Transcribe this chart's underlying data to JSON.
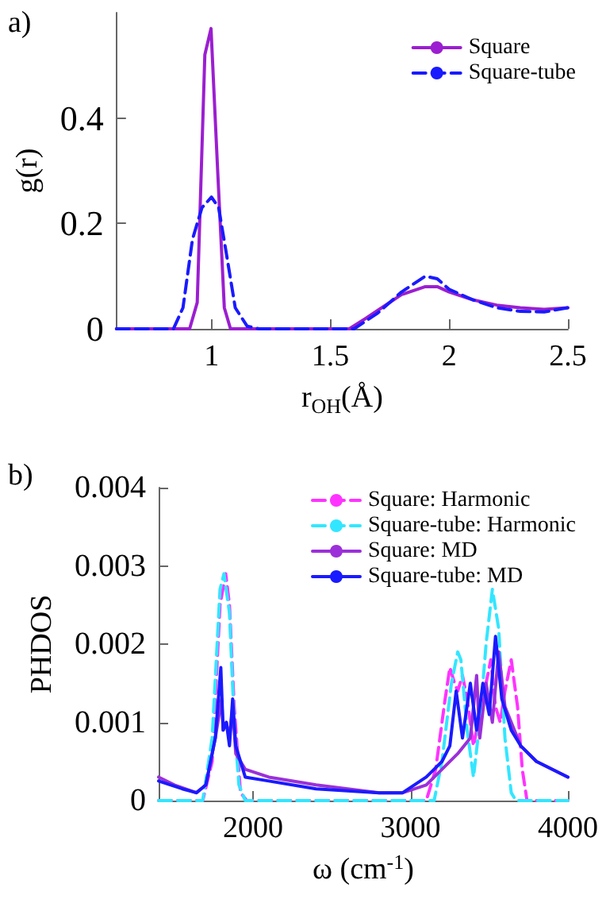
{
  "chart_data": [
    {
      "type": "line",
      "title": "a)",
      "xlabel": "r$_{OH}$(Å)",
      "ylabel": "g(r)",
      "xlim": [
        0.6,
        2.5
      ],
      "xticks": [
        1,
        1.5,
        2,
        2.5
      ],
      "ylim": [
        0,
        0.6
      ],
      "yticks": [
        0,
        0.2,
        0.4
      ],
      "grid": false,
      "legend": "top right",
      "series": [
        {
          "name": "Square",
          "color": "#9b1fd0",
          "line_style": "solid",
          "x": [
            0.6,
            0.908,
            0.94,
            0.972,
            0.998,
            1.026,
            1.054,
            1.08,
            1.58,
            1.65,
            1.7,
            1.8,
            1.9,
            1.95,
            2.0,
            2.1,
            2.2,
            2.3,
            2.4,
            2.5
          ],
          "values": [
            0,
            0,
            0.05,
            0.52,
            0.57,
            0.3,
            0.04,
            0,
            0,
            0.02,
            0.035,
            0.065,
            0.08,
            0.08,
            0.07,
            0.055,
            0.045,
            0.04,
            0.037,
            0.04
          ]
        },
        {
          "name": "Square-tube",
          "color": "#1a1aff",
          "line_style": "dashed",
          "x": [
            0.6,
            0.84,
            0.88,
            0.92,
            0.96,
            1.0,
            1.03,
            1.06,
            1.1,
            1.15,
            1.2,
            1.6,
            1.7,
            1.8,
            1.9,
            1.95,
            2.0,
            2.1,
            2.2,
            2.3,
            2.4,
            2.5
          ],
          "values": [
            0,
            0,
            0.04,
            0.17,
            0.23,
            0.25,
            0.23,
            0.15,
            0.04,
            0.005,
            0,
            0,
            0.03,
            0.07,
            0.1,
            0.095,
            0.075,
            0.055,
            0.04,
            0.033,
            0.032,
            0.04
          ]
        }
      ]
    },
    {
      "type": "line",
      "title": "b)",
      "xlabel": "ω (cm$^{-1}$)",
      "ylabel": "PHDOS",
      "xlim": [
        1400,
        4000
      ],
      "xticks": [
        2000,
        3000,
        4000
      ],
      "ylim": [
        0,
        0.004
      ],
      "yticks": [
        0,
        0.001,
        0.002,
        0.003,
        0.004
      ],
      "grid": false,
      "legend": "top right",
      "series": [
        {
          "name": "Square: Harmonic",
          "color": "#ff33ff",
          "line_style": "dashed",
          "x": [
            1400,
            1680,
            1740,
            1790,
            1826,
            1850,
            1880,
            1920,
            1960,
            3100,
            3160,
            3220,
            3250,
            3280,
            3300,
            3330,
            3360,
            3400,
            3440,
            3480,
            3510,
            3540,
            3570,
            3600,
            3640,
            3680,
            3710,
            3740,
            4000
          ],
          "values": [
            0,
            0,
            0.0005,
            0.0025,
            0.0029,
            0.0025,
            0.0012,
            0.0001,
            0,
            0,
            0.0004,
            0.0013,
            0.0017,
            0.0015,
            0.0014,
            0.0016,
            0.0013,
            0.0007,
            0.0011,
            0.0015,
            0.0018,
            0.0012,
            0.001,
            0.0014,
            0.0018,
            0.0012,
            0.0004,
            0,
            0
          ]
        },
        {
          "name": "Square-tube: Harmonic",
          "color": "#33e6ff",
          "line_style": "dashed",
          "x": [
            1400,
            1680,
            1740,
            1790,
            1815,
            1850,
            1880,
            1910,
            1950,
            3150,
            3200,
            3260,
            3300,
            3320,
            3360,
            3400,
            3440,
            3480,
            3520,
            3560,
            3600,
            3640,
            3670,
            4000
          ],
          "values": [
            0,
            0,
            0.0008,
            0.0027,
            0.0029,
            0.0024,
            0.001,
            0.0002,
            0,
            0,
            0.0005,
            0.0015,
            0.0019,
            0.0018,
            0.0009,
            0.0003,
            0.001,
            0.002,
            0.0027,
            0.0022,
            0.0008,
            0.0001,
            0,
            0
          ]
        },
        {
          "name": "Square: MD",
          "color": "#9b30d9",
          "line_style": "solid",
          "x": [
            1400,
            1500,
            1640,
            1700,
            1760,
            1800,
            1810,
            1830,
            1850,
            1870,
            1890,
            1950,
            2100,
            2400,
            2800,
            2950,
            3100,
            3200,
            3300,
            3380,
            3420,
            3440,
            3480,
            3520,
            3560,
            3600,
            3640,
            3700,
            3800,
            4000
          ],
          "values": [
            0.0003,
            0.0002,
            0.0001,
            0.0002,
            0.0008,
            0.0013,
            0.0009,
            0.001,
            0.0008,
            0.0012,
            0.0006,
            0.0004,
            0.0003,
            0.0002,
            0.0001,
            0.0001,
            0.0002,
            0.0004,
            0.0006,
            0.0008,
            0.0016,
            0.0008,
            0.0015,
            0.001,
            0.0019,
            0.0012,
            0.001,
            0.0007,
            0.0005,
            0.0003
          ]
        },
        {
          "name": "Square-tube: MD",
          "color": "#1a1aff",
          "line_style": "solid",
          "x": [
            1400,
            1550,
            1640,
            1700,
            1760,
            1795,
            1810,
            1830,
            1850,
            1870,
            1890,
            1950,
            2100,
            2400,
            2800,
            2950,
            3100,
            3150,
            3200,
            3250,
            3290,
            3330,
            3380,
            3420,
            3460,
            3500,
            3540,
            3580,
            3640,
            3700,
            3800,
            4000
          ],
          "values": [
            0.00025,
            0.00015,
            0.0001,
            0.0002,
            0.0008,
            0.0017,
            0.0009,
            0.001,
            0.0007,
            0.0013,
            0.0007,
            0.0003,
            0.00025,
            0.00015,
            0.0001,
            0.0001,
            0.0003,
            0.0004,
            0.0005,
            0.0007,
            0.0014,
            0.0008,
            0.0015,
            0.0009,
            0.0015,
            0.0011,
            0.0021,
            0.0013,
            0.0009,
            0.0007,
            0.0005,
            0.0003
          ]
        }
      ]
    }
  ]
}
